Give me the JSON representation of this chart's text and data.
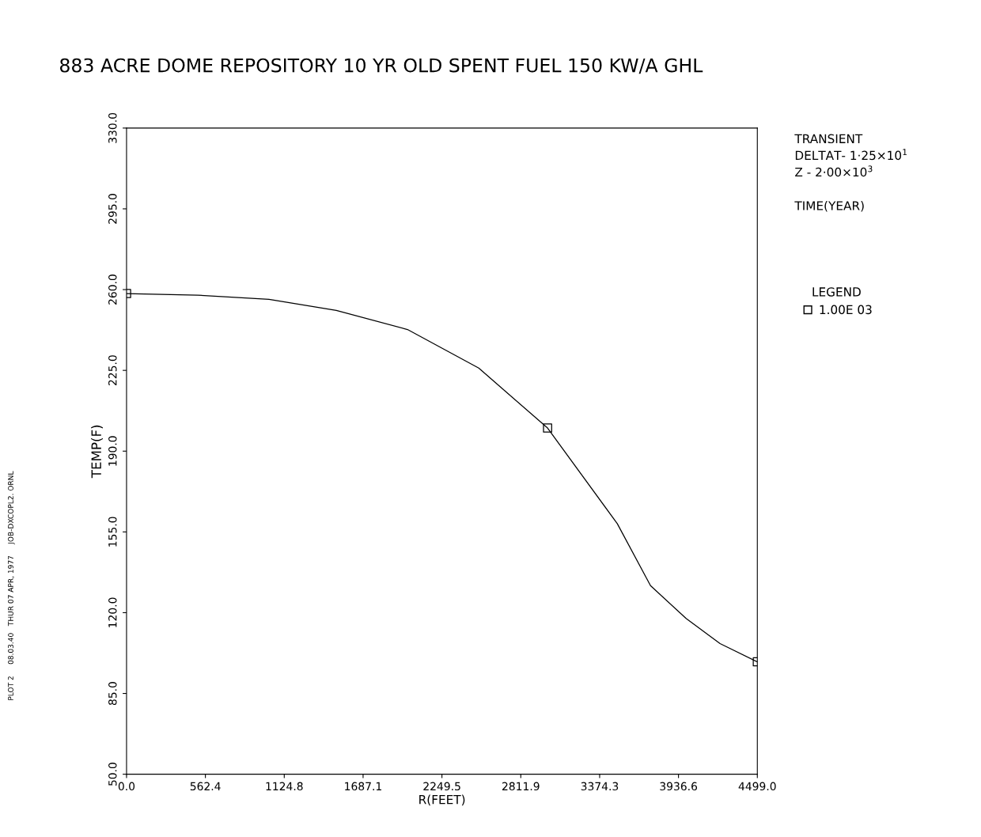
{
  "chart_data": {
    "type": "line",
    "title": "883 ACRE DOME REPOSITORY 10 YR OLD SPENT FUEL 150 KW/A GHL",
    "xlabel": "R(FEET)",
    "ylabel": "TEMP(F)",
    "legend_title": "LEGEND",
    "annotations": [
      "TRANSIENT",
      "DELTAT- 1·25×10$^{1}$",
      "Z - 2·00×10$^{3}$",
      "TIME(YEAR)",
      "PLOT 2     08.03.40   THUR 07 APR, 1977     JOB-DXCOPL2. ORNL"
    ],
    "series": [
      {
        "color": "#000000",
        "x": [
          0,
          508,
          1016,
          1496,
          2004,
          2512,
          3003,
          3500,
          3737,
          3991,
          4233,
          4499
        ],
        "values": [
          258.3,
          257.6,
          255.8,
          251.0,
          242.7,
          226.0,
          200.0,
          158.6,
          131.7,
          117.5,
          106.6,
          98.7
        ]
      },
      {
        "type": "scatter",
        "name": "1.00E 03",
        "color": "#000000",
        "marker": "square",
        "x": [
          0,
          3003,
          4499
        ],
        "values": [
          258.3,
          200.0,
          98.7
        ]
      }
    ],
    "xlim": [
      0,
      4499
    ],
    "ylim": [
      50,
      330
    ],
    "xticks": [
      {
        "value": 0,
        "label": "0.0"
      },
      562.4,
      1124.8,
      1687.1,
      2249.5,
      2811.9,
      3374.3,
      3936.6,
      {
        "value": 4499,
        "label": "4499.0"
      }
    ],
    "yticks": [
      {
        "value": 50,
        "label": "50.0"
      },
      {
        "value": 85,
        "label": "85.0"
      },
      {
        "value": 120,
        "label": "120.0"
      },
      {
        "value": 155,
        "label": "155.0"
      },
      {
        "value": 190,
        "label": "190.0"
      },
      {
        "value": 225,
        "label": "225.0"
      },
      {
        "value": 260,
        "label": "260.0"
      },
      {
        "value": 295,
        "label": "295.0"
      },
      {
        "value": 330,
        "label": "330.0"
      }
    ],
    "grid": false,
    "legend": "right"
  }
}
